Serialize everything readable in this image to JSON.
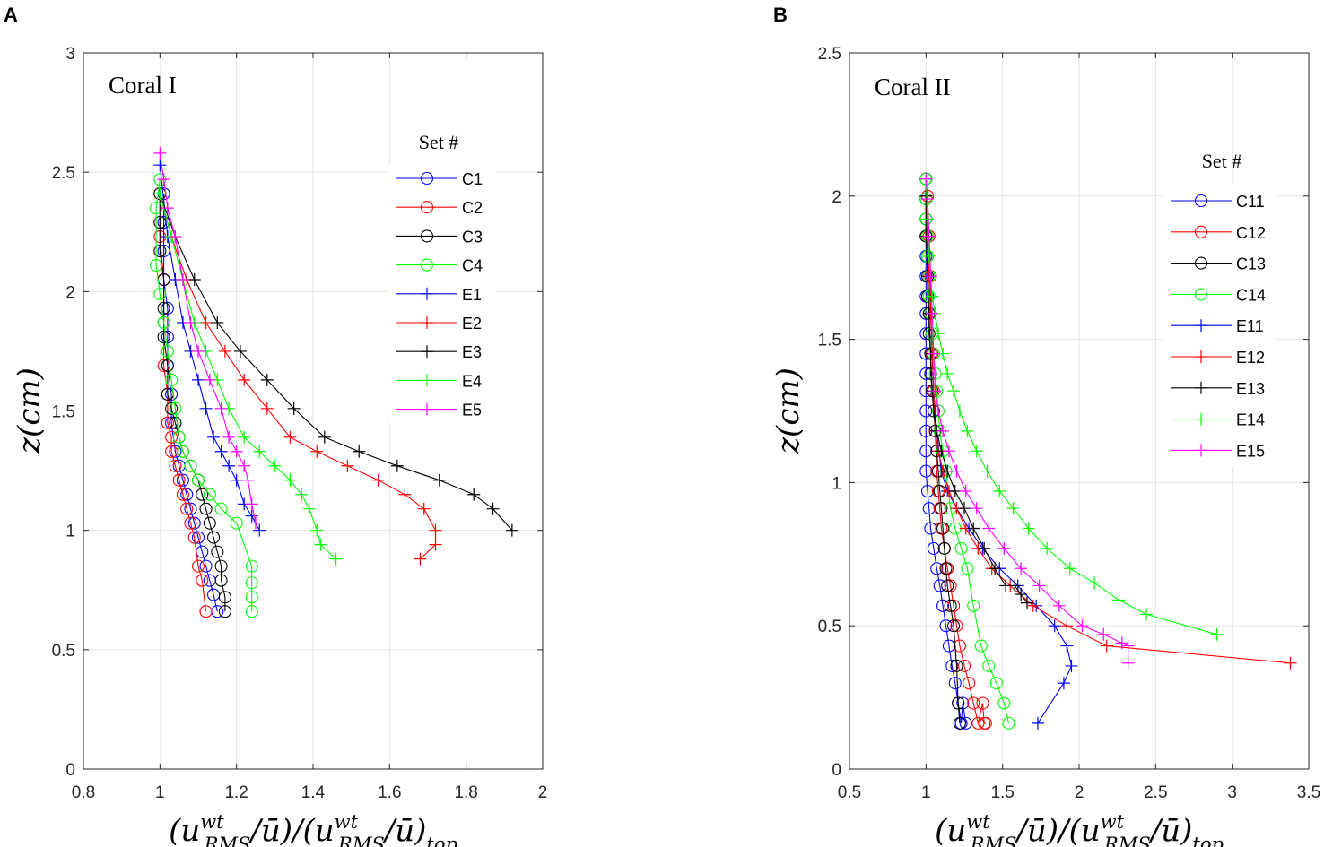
{
  "chart_data": [
    {
      "type": "line",
      "panel_label": "A",
      "title": "Coral I",
      "xlabel": "(u^wt_RMS/ū)/(u^wt_RMS/ū)_top",
      "ylabel": "z(cm)",
      "xlim": [
        0.8,
        2
      ],
      "ylim": [
        0,
        3
      ],
      "xticks": [
        0.8,
        1,
        1.2,
        1.4,
        1.6,
        1.8,
        2
      ],
      "yticks": [
        0,
        0.5,
        1,
        1.5,
        2,
        2.5,
        3
      ],
      "xtick_labels": [
        "0.8",
        "1",
        "1.2",
        "1.4",
        "1.6",
        "1.8",
        "2"
      ],
      "ytick_labels": [
        "0",
        "0.5",
        "1",
        "1.5",
        "2",
        "2.5",
        "3"
      ],
      "grid": true,
      "legend_title": "Set #",
      "legend_position": "upper-right",
      "series": [
        {
          "name": "C1",
          "color": "#0000ff",
          "marker": "circle",
          "x": [
            1.01,
            1.01,
            1.01,
            1.01,
            1.02,
            1.02,
            1.02,
            1.03,
            1.03,
            1.04,
            1.05,
            1.06,
            1.07,
            1.08,
            1.09,
            1.1,
            1.11,
            1.12,
            1.13,
            1.14,
            1.15
          ],
          "y": [
            2.41,
            2.29,
            2.17,
            2.05,
            1.93,
            1.81,
            1.69,
            1.57,
            1.45,
            1.33,
            1.27,
            1.21,
            1.15,
            1.09,
            1.03,
            0.97,
            0.91,
            0.85,
            0.79,
            0.73,
            0.66
          ]
        },
        {
          "name": "C2",
          "color": "#ff0000",
          "marker": "circle",
          "x": [
            1.0,
            1.0,
            1.01,
            1.01,
            1.01,
            1.02,
            1.02,
            1.03,
            1.03,
            1.04,
            1.05,
            1.06,
            1.07,
            1.08,
            1.09,
            1.1,
            1.11,
            1.12
          ],
          "y": [
            2.41,
            2.23,
            2.05,
            1.87,
            1.69,
            1.57,
            1.45,
            1.39,
            1.33,
            1.27,
            1.21,
            1.15,
            1.09,
            1.03,
            0.97,
            0.85,
            0.79,
            0.66
          ]
        },
        {
          "name": "C3",
          "color": "#000000",
          "marker": "circle",
          "x": [
            1.0,
            1.0,
            1.0,
            1.01,
            1.01,
            1.01,
            1.02,
            1.02,
            1.03,
            1.04,
            1.05,
            1.06,
            1.08,
            1.1,
            1.11,
            1.12,
            1.13,
            1.14,
            1.15,
            1.16,
            1.16,
            1.17,
            1.17
          ],
          "y": [
            2.41,
            2.29,
            2.17,
            2.05,
            1.93,
            1.81,
            1.69,
            1.57,
            1.51,
            1.45,
            1.39,
            1.33,
            1.27,
            1.21,
            1.15,
            1.09,
            1.03,
            0.97,
            0.91,
            0.85,
            0.79,
            0.72,
            0.66
          ]
        },
        {
          "name": "C4",
          "color": "#00ff00",
          "marker": "circle",
          "x": [
            1.0,
            0.99,
            0.99,
            1.0,
            1.01,
            1.02,
            1.03,
            1.04,
            1.05,
            1.06,
            1.08,
            1.1,
            1.13,
            1.16,
            1.2,
            1.24,
            1.24,
            1.24,
            1.24
          ],
          "y": [
            2.47,
            2.35,
            2.11,
            1.99,
            1.87,
            1.75,
            1.63,
            1.51,
            1.39,
            1.33,
            1.27,
            1.21,
            1.15,
            1.09,
            1.03,
            0.85,
            0.78,
            0.72,
            0.66
          ]
        },
        {
          "name": "E1",
          "color": "#0000ff",
          "marker": "plus",
          "x": [
            1.0,
            1.02,
            1.04,
            1.06,
            1.08,
            1.1,
            1.12,
            1.14,
            1.16,
            1.18,
            1.2,
            1.22,
            1.24,
            1.26
          ],
          "y": [
            2.53,
            2.23,
            2.05,
            1.87,
            1.75,
            1.63,
            1.51,
            1.39,
            1.33,
            1.27,
            1.21,
            1.11,
            1.06,
            1.0
          ]
        },
        {
          "name": "E2",
          "color": "#ff0000",
          "marker": "plus",
          "x": [
            1.0,
            1.03,
            1.07,
            1.12,
            1.17,
            1.22,
            1.28,
            1.34,
            1.41,
            1.49,
            1.57,
            1.64,
            1.69,
            1.72,
            1.72,
            1.68
          ],
          "y": [
            2.41,
            2.23,
            2.05,
            1.87,
            1.75,
            1.63,
            1.51,
            1.39,
            1.33,
            1.27,
            1.21,
            1.15,
            1.09,
            1.0,
            0.94,
            0.88
          ]
        },
        {
          "name": "E3",
          "color": "#000000",
          "marker": "plus",
          "x": [
            1.0,
            1.04,
            1.09,
            1.15,
            1.21,
            1.28,
            1.35,
            1.43,
            1.52,
            1.62,
            1.73,
            1.82,
            1.87,
            1.92
          ],
          "y": [
            2.41,
            2.23,
            2.05,
            1.87,
            1.75,
            1.63,
            1.51,
            1.39,
            1.33,
            1.27,
            1.21,
            1.15,
            1.09,
            1.0
          ]
        },
        {
          "name": "E4",
          "color": "#00ff00",
          "marker": "plus",
          "x": [
            1.0,
            1.03,
            1.06,
            1.09,
            1.12,
            1.15,
            1.18,
            1.22,
            1.26,
            1.3,
            1.34,
            1.37,
            1.39,
            1.41,
            1.42,
            1.46
          ],
          "y": [
            2.41,
            2.23,
            2.05,
            1.87,
            1.75,
            1.63,
            1.51,
            1.39,
            1.33,
            1.27,
            1.21,
            1.15,
            1.09,
            1.0,
            0.94,
            0.88
          ]
        },
        {
          "name": "E5",
          "color": "#ff00ff",
          "marker": "plus",
          "x": [
            1.0,
            1.01,
            1.02,
            1.04,
            1.06,
            1.08,
            1.1,
            1.13,
            1.16,
            1.18,
            1.2,
            1.22,
            1.23,
            1.24,
            1.25
          ],
          "y": [
            2.58,
            2.47,
            2.35,
            2.23,
            2.05,
            1.87,
            1.75,
            1.63,
            1.51,
            1.39,
            1.33,
            1.27,
            1.21,
            1.11,
            1.03
          ]
        }
      ]
    },
    {
      "type": "line",
      "panel_label": "B",
      "title": "Coral II",
      "xlabel": "(u^wt_RMS/ū)/(u^wt_RMS/ū)_top",
      "ylabel": "z(cm)",
      "xlim": [
        0.5,
        3.5
      ],
      "ylim": [
        0,
        2.5
      ],
      "xticks": [
        0.5,
        1,
        1.5,
        2,
        2.5,
        3,
        3.5
      ],
      "yticks": [
        0,
        0.5,
        1,
        1.5,
        2,
        2.5
      ],
      "xtick_labels": [
        "0.5",
        "1",
        "1.5",
        "2",
        "2.5",
        "3",
        "3.5"
      ],
      "ytick_labels": [
        "0",
        "0.5",
        "1",
        "1.5",
        "2",
        "2.5"
      ],
      "grid": true,
      "legend_title": "Set #",
      "legend_position": "upper-right",
      "series": [
        {
          "name": "C11",
          "color": "#0000ff",
          "marker": "circle",
          "x": [
            1.0,
            1.0,
            1.0,
            1.0,
            1.0,
            1.0,
            1.0,
            1.0,
            1.0,
            1.0,
            1.0,
            1.0,
            1.0,
            1.0,
            1.0,
            1.0,
            1.01,
            1.02,
            1.03,
            1.05,
            1.07,
            1.09,
            1.11,
            1.13,
            1.15,
            1.17,
            1.19,
            1.21,
            1.23,
            1.24,
            1.26
          ],
          "y": [
            2.06,
            1.99,
            1.92,
            1.86,
            1.79,
            1.72,
            1.65,
            1.59,
            1.52,
            1.45,
            1.38,
            1.32,
            1.25,
            1.18,
            1.11,
            1.04,
            0.97,
            0.91,
            0.84,
            0.77,
            0.7,
            0.64,
            0.57,
            0.5,
            0.43,
            0.36,
            0.3,
            0.23,
            0.16,
            0.23,
            0.16
          ]
        },
        {
          "name": "C12",
          "color": "#ff0000",
          "marker": "circle",
          "x": [
            1.01,
            1.02,
            1.03,
            1.03,
            1.04,
            1.05,
            1.06,
            1.07,
            1.08,
            1.09,
            1.1,
            1.12,
            1.14,
            1.16,
            1.18,
            1.2,
            1.22,
            1.25,
            1.28,
            1.31,
            1.34,
            1.37,
            1.38,
            1.39
          ],
          "y": [
            2.0,
            1.86,
            1.72,
            1.59,
            1.45,
            1.32,
            1.18,
            1.04,
            0.97,
            0.91,
            0.84,
            0.77,
            0.7,
            0.64,
            0.57,
            0.5,
            0.43,
            0.36,
            0.3,
            0.23,
            0.16,
            0.23,
            0.16,
            0.16
          ]
        },
        {
          "name": "C13",
          "color": "#000000",
          "marker": "circle",
          "x": [
            1.0,
            1.0,
            1.0,
            1.0,
            1.01,
            1.01,
            1.01,
            1.02,
            1.02,
            1.03,
            1.03,
            1.04,
            1.05,
            1.06,
            1.07,
            1.08,
            1.09,
            1.1,
            1.11,
            1.12,
            1.13,
            1.14,
            1.16,
            1.18,
            1.2,
            1.21,
            1.22
          ],
          "y": [
            2.06,
            1.99,
            1.92,
            1.86,
            1.79,
            1.72,
            1.65,
            1.59,
            1.52,
            1.45,
            1.38,
            1.32,
            1.25,
            1.18,
            1.11,
            1.04,
            0.97,
            0.91,
            0.84,
            0.77,
            0.7,
            0.64,
            0.57,
            0.5,
            0.36,
            0.23,
            0.16
          ]
        },
        {
          "name": "C14",
          "color": "#00ff00",
          "marker": "circle",
          "x": [
            1.0,
            1.0,
            1.0,
            1.01,
            1.01,
            1.02,
            1.02,
            1.03,
            1.04,
            1.05,
            1.06,
            1.07,
            1.08,
            1.09,
            1.11,
            1.13,
            1.16,
            1.19,
            1.23,
            1.27,
            1.31,
            1.36,
            1.41,
            1.46,
            1.51,
            1.54
          ],
          "y": [
            2.06,
            1.99,
            1.92,
            1.86,
            1.79,
            1.72,
            1.65,
            1.59,
            1.52,
            1.45,
            1.38,
            1.32,
            1.25,
            1.18,
            1.11,
            1.04,
            0.91,
            0.84,
            0.77,
            0.7,
            0.57,
            0.43,
            0.36,
            0.3,
            0.23,
            0.16
          ]
        },
        {
          "name": "E11",
          "color": "#0000ff",
          "marker": "plus",
          "x": [
            1.0,
            1.01,
            1.02,
            1.03,
            1.04,
            1.05,
            1.07,
            1.1,
            1.14,
            1.2,
            1.28,
            1.37,
            1.48,
            1.6,
            1.72,
            1.84,
            1.92,
            1.95,
            1.9,
            1.73
          ],
          "y": [
            2.0,
            1.86,
            1.72,
            1.59,
            1.45,
            1.32,
            1.18,
            1.04,
            0.97,
            0.91,
            0.84,
            0.77,
            0.7,
            0.64,
            0.57,
            0.5,
            0.43,
            0.36,
            0.3,
            0.16
          ]
        },
        {
          "name": "E12",
          "color": "#ff0000",
          "marker": "plus",
          "x": [
            1.0,
            1.01,
            1.02,
            1.03,
            1.04,
            1.05,
            1.06,
            1.08,
            1.11,
            1.15,
            1.2,
            1.26,
            1.34,
            1.43,
            1.55,
            1.7,
            1.92,
            2.18,
            3.38
          ],
          "y": [
            2.0,
            1.86,
            1.72,
            1.59,
            1.45,
            1.32,
            1.18,
            1.11,
            1.04,
            0.97,
            0.91,
            0.84,
            0.77,
            0.7,
            0.64,
            0.57,
            0.5,
            0.43,
            0.37
          ]
        },
        {
          "name": "E13",
          "color": "#000000",
          "marker": "plus",
          "x": [
            1.0,
            1.0,
            1.01,
            1.02,
            1.03,
            1.04,
            1.05,
            1.07,
            1.1,
            1.14,
            1.19,
            1.25,
            1.31,
            1.38,
            1.45,
            1.52,
            1.58,
            1.62,
            1.66
          ],
          "y": [
            2.0,
            1.86,
            1.72,
            1.59,
            1.45,
            1.32,
            1.25,
            1.18,
            1.11,
            1.04,
            0.97,
            0.91,
            0.84,
            0.77,
            0.7,
            0.64,
            0.64,
            0.61,
            0.58
          ]
        },
        {
          "name": "E14",
          "color": "#00ff00",
          "marker": "plus",
          "x": [
            1.0,
            1.01,
            1.02,
            1.04,
            1.06,
            1.08,
            1.11,
            1.14,
            1.18,
            1.22,
            1.27,
            1.33,
            1.4,
            1.48,
            1.57,
            1.67,
            1.79,
            1.94,
            2.1,
            2.26,
            2.44,
            2.9
          ],
          "y": [
            2.06,
            1.92,
            1.79,
            1.65,
            1.59,
            1.52,
            1.45,
            1.38,
            1.32,
            1.25,
            1.18,
            1.11,
            1.04,
            0.97,
            0.91,
            0.84,
            0.77,
            0.7,
            0.65,
            0.59,
            0.54,
            0.47
          ]
        },
        {
          "name": "E15",
          "color": "#ff00ff",
          "marker": "plus",
          "x": [
            1.0,
            1.01,
            1.02,
            1.03,
            1.04,
            1.05,
            1.06,
            1.08,
            1.11,
            1.15,
            1.2,
            1.26,
            1.33,
            1.41,
            1.51,
            1.62,
            1.74,
            1.87,
            2.02,
            2.16,
            2.28,
            2.32,
            2.32
          ],
          "y": [
            2.06,
            1.99,
            1.86,
            1.72,
            1.59,
            1.45,
            1.32,
            1.25,
            1.18,
            1.11,
            1.04,
            0.97,
            0.91,
            0.84,
            0.77,
            0.7,
            0.64,
            0.57,
            0.5,
            0.47,
            0.44,
            0.43,
            0.37
          ]
        }
      ]
    }
  ]
}
